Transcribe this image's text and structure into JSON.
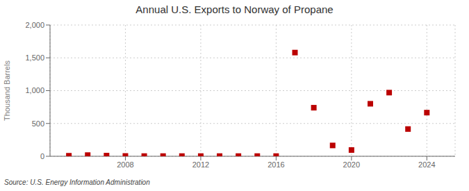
{
  "chart_data": {
    "type": "scatter",
    "title": "Annual U.S. Exports to Norway of Propane",
    "ylabel": "Thousand Barrels",
    "annotations": [
      "Source: U.S. Energy Information Administration"
    ],
    "x": [
      2005,
      2006,
      2007,
      2008,
      2009,
      2010,
      2011,
      2012,
      2013,
      2014,
      2015,
      2016,
      2017,
      2018,
      2019,
      2020,
      2021,
      2022,
      2023,
      2024
    ],
    "values": [
      8,
      18,
      10,
      5,
      3,
      3,
      3,
      3,
      3,
      3,
      3,
      3,
      1580,
      740,
      165,
      95,
      800,
      970,
      415,
      665
    ],
    "color": "#bb0000",
    "marker": "square",
    "xlim": [
      2004.0,
      2025.5
    ],
    "xticks": [
      2008,
      2012,
      2016,
      2020,
      2024
    ],
    "ylim": [
      0,
      2000
    ],
    "yticks": [
      0,
      500,
      {
        "value": 1000,
        "label": "1,000"
      },
      {
        "value": 1500,
        "label": "1,500"
      },
      {
        "value": 2000,
        "label": "2,000"
      }
    ],
    "grid": true
  }
}
